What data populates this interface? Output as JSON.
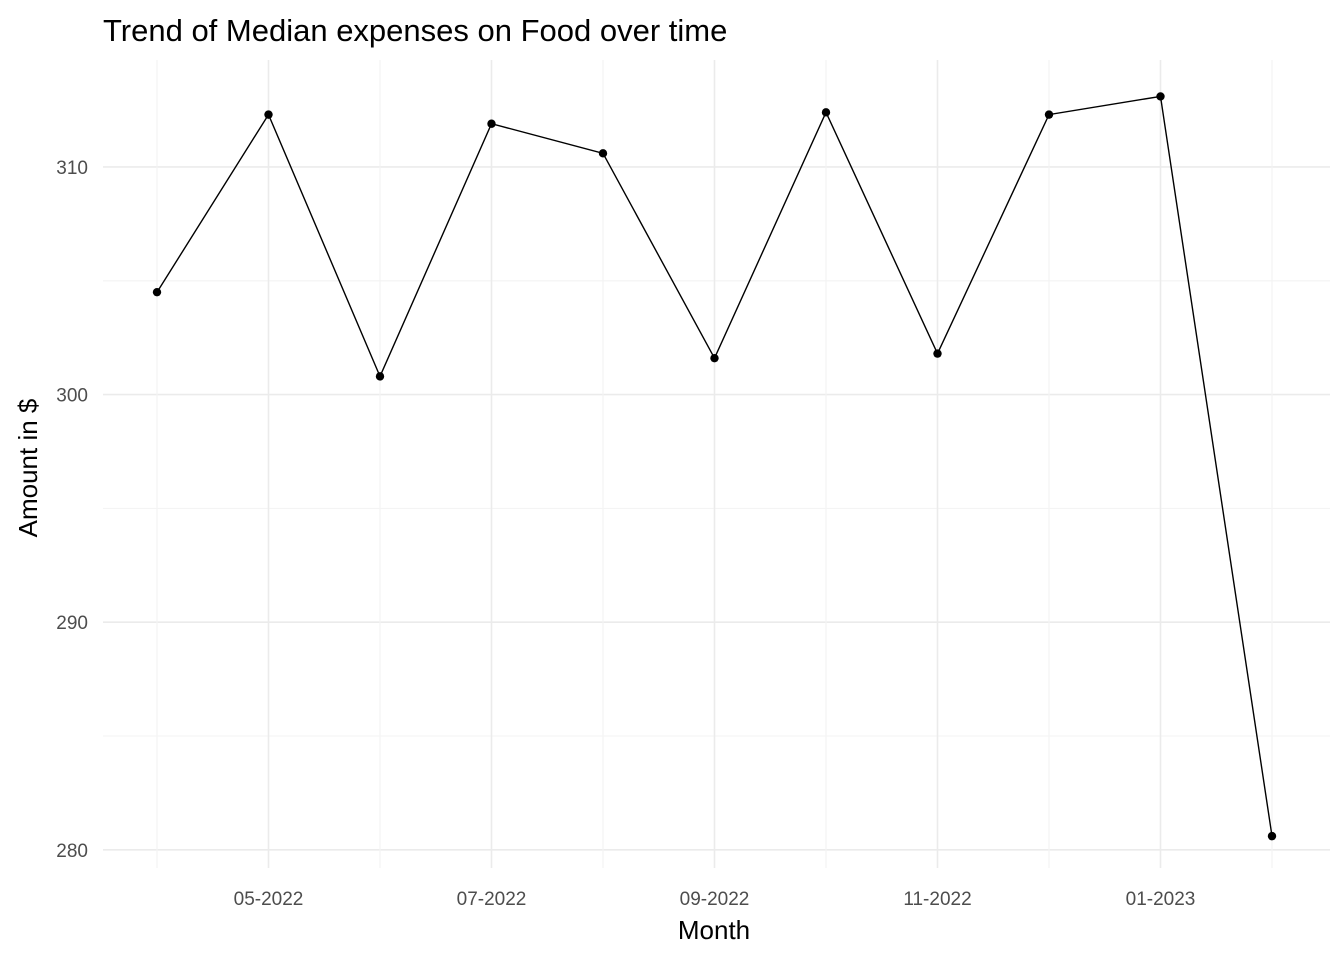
{
  "chart_data": {
    "type": "line",
    "title": "Trend of Median expenses on Food over time",
    "xlabel": "Month",
    "ylabel": "Amount in $",
    "x": [
      "04-2022",
      "05-2022",
      "06-2022",
      "07-2022",
      "08-2022",
      "09-2022",
      "10-2022",
      "11-2022",
      "12-2022",
      "01-2023",
      "02-2023"
    ],
    "x_tick_labels": [
      "05-2022",
      "07-2022",
      "09-2022",
      "11-2022",
      "01-2023"
    ],
    "series": [
      {
        "values": [
          304.5,
          312.3,
          300.8,
          311.9,
          310.6,
          301.6,
          312.4,
          301.8,
          312.3,
          313.1,
          280.6
        ]
      }
    ],
    "ylim": [
      279.2,
      314.7
    ],
    "y_ticks": [
      280,
      290,
      300,
      310
    ],
    "y_minor_ticks": [
      285,
      295,
      305
    ],
    "grid": true,
    "legend": "none",
    "colors": {
      "line": "#000000",
      "grid": "#ebebeb",
      "tick_text": "#4d4d4d"
    }
  }
}
